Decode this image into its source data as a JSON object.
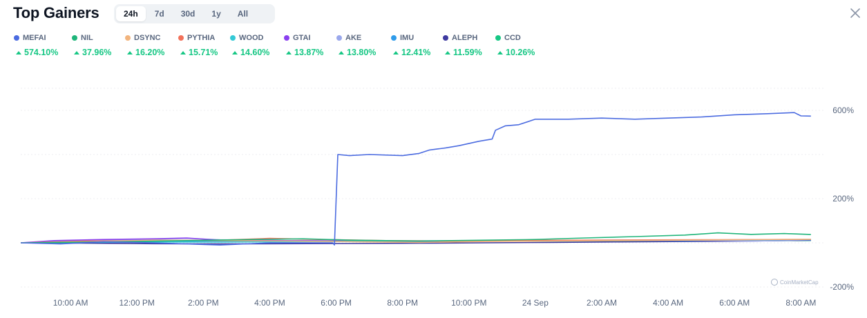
{
  "header": {
    "title": "Top Gainers",
    "tabs": [
      {
        "label": "24h",
        "active": true
      },
      {
        "label": "7d",
        "active": false
      },
      {
        "label": "30d",
        "active": false
      },
      {
        "label": "1y",
        "active": false
      },
      {
        "label": "All",
        "active": false
      }
    ],
    "close_icon": "close-icon"
  },
  "legend": [
    {
      "name": "MEFAI",
      "change": "574.10%",
      "color": "#4b6be0"
    },
    {
      "name": "NIL",
      "change": "37.96%",
      "color": "#1fb57a"
    },
    {
      "name": "DSYNC",
      "change": "16.20%",
      "color": "#f2b47d"
    },
    {
      "name": "PYTHIA",
      "change": "15.71%",
      "color": "#f2715a"
    },
    {
      "name": "WOOD",
      "change": "14.60%",
      "color": "#33c9d6"
    },
    {
      "name": "GTAI",
      "change": "13.87%",
      "color": "#8a3ff0"
    },
    {
      "name": "AKE",
      "change": "13.80%",
      "color": "#9aa8ec"
    },
    {
      "name": "IMU",
      "change": "12.41%",
      "color": "#2f9bea"
    },
    {
      "name": "ALEPH",
      "change": "11.59%",
      "color": "#3e3aa0"
    },
    {
      "name": "CCD",
      "change": "10.26%",
      "color": "#16c784"
    }
  ],
  "watermark": "CoinMarketCap",
  "chart_data": {
    "type": "line",
    "x_tick_labels": [
      "10:00 AM",
      "12:00 PM",
      "2:00 PM",
      "4:00 PM",
      "6:00 PM",
      "8:00 PM",
      "10:00 PM",
      "24 Sep",
      "2:00 AM",
      "4:00 AM",
      "6:00 AM",
      "8:00 AM"
    ],
    "x_tick_hours": [
      1.5,
      3.5,
      5.5,
      7.5,
      9.5,
      11.5,
      13.5,
      15.5,
      17.5,
      19.5,
      21.5,
      23.5
    ],
    "x_range_hours": [
      0,
      24.2
    ],
    "y_tick_labels": [
      "600%",
      "200%",
      "-200%"
    ],
    "y_tick_values": [
      600,
      200,
      -200
    ],
    "ylim": [
      -200,
      800
    ],
    "y_scale": "linear",
    "grid": "horizontal dashed",
    "series": [
      {
        "name": "MEFAI",
        "color": "#4b6be0",
        "final_change": 574.1,
        "points": [
          [
            0,
            0
          ],
          [
            1.2,
            -5
          ],
          [
            2.5,
            5
          ],
          [
            4,
            0
          ],
          [
            6,
            -10
          ],
          [
            7.5,
            0
          ],
          [
            9,
            0
          ],
          [
            9.4,
            0
          ],
          [
            9.45,
            -10
          ],
          [
            9.55,
            400
          ],
          [
            9.9,
            395
          ],
          [
            10.5,
            400
          ],
          [
            11.5,
            395
          ],
          [
            12,
            405
          ],
          [
            12.3,
            420
          ],
          [
            12.8,
            430
          ],
          [
            13.2,
            440
          ],
          [
            13.8,
            460
          ],
          [
            14.2,
            470
          ],
          [
            14.3,
            510
          ],
          [
            14.6,
            530
          ],
          [
            15,
            535
          ],
          [
            15.5,
            560
          ],
          [
            16.5,
            560
          ],
          [
            17.5,
            565
          ],
          [
            18.5,
            560
          ],
          [
            19.5,
            565
          ],
          [
            20.5,
            570
          ],
          [
            21.5,
            580
          ],
          [
            22.5,
            585
          ],
          [
            23.3,
            590
          ],
          [
            23.5,
            575
          ],
          [
            23.8,
            574.1
          ]
        ]
      },
      {
        "name": "NIL",
        "color": "#1fb57a",
        "final_change": 37.96,
        "points": [
          [
            0,
            0
          ],
          [
            3,
            5
          ],
          [
            5,
            10
          ],
          [
            7,
            15
          ],
          [
            8.5,
            18
          ],
          [
            10,
            12
          ],
          [
            12,
            8
          ],
          [
            14,
            12
          ],
          [
            15.5,
            15
          ],
          [
            17,
            22
          ],
          [
            18.5,
            28
          ],
          [
            20,
            35
          ],
          [
            21,
            45
          ],
          [
            22,
            38
          ],
          [
            23,
            42
          ],
          [
            23.8,
            37.96
          ]
        ]
      },
      {
        "name": "DSYNC",
        "color": "#f2b47d",
        "final_change": 16.2,
        "points": [
          [
            0,
            0
          ],
          [
            2,
            5
          ],
          [
            4,
            12
          ],
          [
            6,
            10
          ],
          [
            8,
            8
          ],
          [
            10,
            5
          ],
          [
            12,
            2
          ],
          [
            14,
            6
          ],
          [
            16,
            8
          ],
          [
            18,
            10
          ],
          [
            20,
            12
          ],
          [
            22,
            14
          ],
          [
            23.8,
            16.2
          ]
        ]
      },
      {
        "name": "PYTHIA",
        "color": "#f2715a",
        "final_change": 15.71,
        "points": [
          [
            0,
            0
          ],
          [
            2,
            8
          ],
          [
            4,
            10
          ],
          [
            6,
            12
          ],
          [
            7.5,
            20
          ],
          [
            9,
            15
          ],
          [
            11,
            10
          ],
          [
            13,
            8
          ],
          [
            15,
            10
          ],
          [
            17,
            12
          ],
          [
            19,
            13
          ],
          [
            21,
            14
          ],
          [
            23.8,
            15.71
          ]
        ]
      },
      {
        "name": "WOOD",
        "color": "#33c9d6",
        "final_change": 14.6,
        "points": [
          [
            0,
            0
          ],
          [
            2,
            2
          ],
          [
            4,
            4
          ],
          [
            6,
            3
          ],
          [
            8,
            5
          ],
          [
            10,
            7
          ],
          [
            12,
            8
          ],
          [
            14,
            9
          ],
          [
            16,
            10
          ],
          [
            18,
            11
          ],
          [
            20,
            12
          ],
          [
            22,
            13
          ],
          [
            23.8,
            14.6
          ]
        ]
      },
      {
        "name": "GTAI",
        "color": "#8a3ff0",
        "final_change": 13.87,
        "points": [
          [
            0,
            0
          ],
          [
            1,
            10
          ],
          [
            2.5,
            15
          ],
          [
            4,
            18
          ],
          [
            5,
            22
          ],
          [
            6,
            12
          ],
          [
            8,
            10
          ],
          [
            10,
            8
          ],
          [
            12,
            6
          ],
          [
            14,
            8
          ],
          [
            16,
            10
          ],
          [
            18,
            11
          ],
          [
            20,
            12
          ],
          [
            22,
            13
          ],
          [
            23.8,
            13.87
          ]
        ]
      },
      {
        "name": "AKE",
        "color": "#9aa8ec",
        "final_change": 13.8,
        "points": [
          [
            0,
            0
          ],
          [
            2,
            12
          ],
          [
            4,
            16
          ],
          [
            5,
            20
          ],
          [
            6,
            14
          ],
          [
            8,
            10
          ],
          [
            10,
            8
          ],
          [
            12,
            9
          ],
          [
            14,
            10
          ],
          [
            16,
            11
          ],
          [
            18,
            12
          ],
          [
            20,
            12
          ],
          [
            22,
            8
          ],
          [
            23,
            10
          ],
          [
            23.8,
            13.8
          ]
        ]
      },
      {
        "name": "IMU",
        "color": "#2f9bea",
        "final_change": 12.41,
        "points": [
          [
            0,
            0
          ],
          [
            2,
            3
          ],
          [
            4,
            5
          ],
          [
            6,
            6
          ],
          [
            8,
            6
          ],
          [
            10,
            7
          ],
          [
            12,
            8
          ],
          [
            14,
            8
          ],
          [
            16,
            9
          ],
          [
            18,
            10
          ],
          [
            20,
            10
          ],
          [
            22,
            11
          ],
          [
            23.8,
            12.41
          ]
        ]
      },
      {
        "name": "ALEPH",
        "color": "#3e3aa0",
        "final_change": 11.59,
        "points": [
          [
            0,
            0
          ],
          [
            2,
            -2
          ],
          [
            4,
            -4
          ],
          [
            6,
            -5
          ],
          [
            8,
            -4
          ],
          [
            10,
            -3
          ],
          [
            12,
            -2
          ],
          [
            14,
            0
          ],
          [
            16,
            2
          ],
          [
            18,
            4
          ],
          [
            20,
            6
          ],
          [
            22,
            8
          ],
          [
            23.8,
            11.59
          ]
        ]
      },
      {
        "name": "CCD",
        "color": "#16c784",
        "final_change": 10.26,
        "points": [
          [
            0,
            0
          ],
          [
            2,
            2
          ],
          [
            4,
            4
          ],
          [
            6,
            5
          ],
          [
            8,
            6
          ],
          [
            10,
            6
          ],
          [
            12,
            7
          ],
          [
            14,
            7
          ],
          [
            16,
            8
          ],
          [
            18,
            8
          ],
          [
            20,
            9
          ],
          [
            22,
            9
          ],
          [
            23.8,
            10.26
          ]
        ]
      }
    ]
  }
}
